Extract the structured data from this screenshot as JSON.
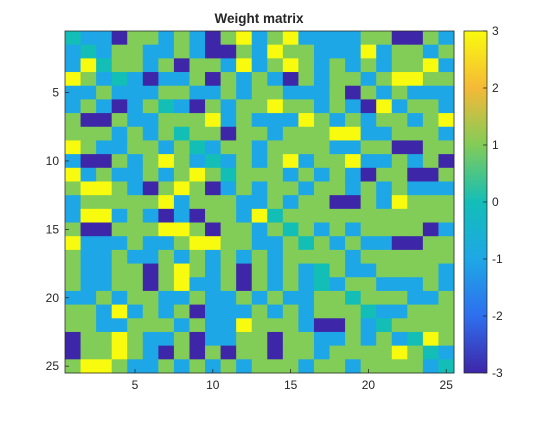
{
  "chart_data": {
    "type": "heatmap",
    "title": "Weight matrix",
    "xlabel": "",
    "ylabel": "",
    "x_range": [
      1,
      25
    ],
    "y_range": [
      1,
      25
    ],
    "x_ticks": [
      5,
      10,
      15,
      20,
      25
    ],
    "y_ticks": [
      5,
      10,
      15,
      20,
      25
    ],
    "colorbar": {
      "ticks": [
        3,
        2,
        1,
        0,
        -1,
        -2,
        -3
      ],
      "range": [
        -3,
        3
      ],
      "colormap": "parula",
      "stops": [
        [
          -3,
          "#3e26a8"
        ],
        [
          -2,
          "#2e6fee"
        ],
        [
          -1,
          "#1ea7e6"
        ],
        [
          0,
          "#13beb7"
        ],
        [
          1,
          "#82cc58"
        ],
        [
          2,
          "#f5b937"
        ],
        [
          3,
          "#f9fb0e"
        ]
      ]
    },
    "matrix": [
      [
        0,
        -1,
        -1,
        -3,
        1,
        1,
        -1,
        1,
        -1,
        -3,
        1,
        3,
        -1,
        1,
        3,
        -1,
        -1,
        -1,
        -1,
        1,
        1,
        -3,
        -3,
        1,
        -1
      ],
      [
        -1,
        0,
        -1,
        1,
        1,
        -1,
        -1,
        1,
        -1,
        -3,
        -3,
        1,
        -1,
        3,
        1,
        1,
        -1,
        -1,
        -1,
        3,
        -1,
        1,
        1,
        -1,
        1
      ],
      [
        -1,
        3,
        0,
        1,
        1,
        -1,
        1,
        -3,
        1,
        1,
        -1,
        3,
        -1,
        1,
        3,
        1,
        -1,
        1,
        -1,
        1,
        -1,
        1,
        1,
        3,
        -1
      ],
      [
        3,
        1,
        -1,
        0,
        -1,
        -3,
        -1,
        -1,
        1,
        -3,
        1,
        -1,
        1,
        -1,
        -3,
        1,
        -1,
        1,
        1,
        -1,
        1,
        3,
        3,
        1,
        1
      ],
      [
        -1,
        -1,
        1,
        -1,
        -1,
        -1,
        1,
        1,
        -1,
        -1,
        1,
        -1,
        1,
        1,
        -1,
        -1,
        -1,
        1,
        -3,
        1,
        -1,
        1,
        -1,
        -1,
        -1
      ],
      [
        -1,
        1,
        -1,
        -3,
        -1,
        1,
        0,
        -1,
        -3,
        1,
        -1,
        1,
        1,
        3,
        1,
        1,
        -1,
        1,
        -1,
        -3,
        3,
        -1,
        1,
        1,
        -1
      ],
      [
        1,
        -3,
        -3,
        1,
        -1,
        -1,
        1,
        1,
        1,
        3,
        -1,
        1,
        -1,
        -1,
        -1,
        3,
        1,
        -1,
        1,
        -1,
        1,
        1,
        -1,
        1,
        3
      ],
      [
        1,
        1,
        1,
        -1,
        1,
        -1,
        1,
        0,
        1,
        1,
        -3,
        1,
        1,
        -1,
        1,
        1,
        1,
        3,
        3,
        -1,
        -1,
        1,
        1,
        1,
        -1
      ],
      [
        3,
        1,
        -1,
        -1,
        1,
        1,
        -1,
        1,
        0,
        -1,
        1,
        1,
        -1,
        1,
        1,
        1,
        1,
        -1,
        -1,
        1,
        1,
        -3,
        -3,
        1,
        1
      ],
      [
        -1,
        -3,
        -3,
        1,
        -1,
        1,
        3,
        1,
        -1,
        0,
        -1,
        1,
        -1,
        1,
        3,
        -1,
        1,
        1,
        3,
        -1,
        -1,
        1,
        -1,
        1,
        -3
      ],
      [
        3,
        -1,
        1,
        -1,
        -1,
        1,
        -1,
        1,
        3,
        1,
        0,
        1,
        1,
        1,
        -1,
        1,
        -1,
        1,
        -1,
        -3,
        1,
        1,
        -3,
        -3,
        1
      ],
      [
        1,
        3,
        3,
        1,
        -1,
        -3,
        1,
        3,
        1,
        -3,
        -1,
        1,
        -1,
        1,
        1,
        -1,
        1,
        1,
        -1,
        1,
        -1,
        1,
        -1,
        -1,
        -1
      ],
      [
        -1,
        1,
        1,
        1,
        1,
        1,
        3,
        -1,
        1,
        1,
        1,
        -1,
        -1,
        1,
        -1,
        1,
        1,
        -3,
        -3,
        1,
        -1,
        3,
        1,
        1,
        1
      ],
      [
        -1,
        3,
        3,
        -1,
        1,
        -1,
        -3,
        -1,
        -3,
        1,
        1,
        -1,
        3,
        0,
        1,
        1,
        1,
        1,
        1,
        1,
        1,
        1,
        1,
        1,
        1
      ],
      [
        1,
        -3,
        -3,
        1,
        1,
        1,
        3,
        3,
        1,
        -3,
        1,
        1,
        -1,
        1,
        0,
        1,
        -1,
        1,
        -1,
        1,
        1,
        1,
        1,
        -3,
        -1
      ],
      [
        3,
        -1,
        -1,
        -1,
        1,
        -1,
        -1,
        1,
        3,
        3,
        1,
        1,
        -1,
        -1,
        1,
        0,
        1,
        -1,
        1,
        -1,
        -1,
        -3,
        -3,
        1,
        1
      ],
      [
        1,
        -1,
        -1,
        1,
        -1,
        -1,
        1,
        -1,
        1,
        -1,
        1,
        -1,
        1,
        -1,
        1,
        1,
        1,
        1,
        -1,
        1,
        1,
        1,
        1,
        1,
        1
      ],
      [
        1,
        -1,
        -1,
        1,
        1,
        -3,
        1,
        3,
        1,
        -1,
        1,
        -3,
        1,
        -1,
        1,
        -1,
        0,
        1,
        -1,
        -1,
        1,
        1,
        1,
        1,
        -1
      ],
      [
        1,
        -1,
        -1,
        1,
        1,
        -3,
        1,
        3,
        -1,
        -1,
        1,
        -3,
        1,
        -1,
        1,
        -1,
        0,
        -1,
        1,
        1,
        -1,
        -1,
        -1,
        1,
        -1
      ],
      [
        -1,
        -1,
        1,
        -1,
        1,
        1,
        -1,
        -1,
        1,
        -1,
        -1,
        1,
        -1,
        1,
        -1,
        -1,
        1,
        1,
        0,
        1,
        1,
        1,
        -1,
        -1,
        1
      ],
      [
        1,
        1,
        -1,
        3,
        -1,
        1,
        -1,
        1,
        -3,
        -1,
        -1,
        -1,
        1,
        -1,
        1,
        -1,
        1,
        1,
        1,
        0,
        -1,
        -1,
        1,
        1,
        1
      ],
      [
        1,
        1,
        -1,
        -1,
        1,
        1,
        1,
        -1,
        1,
        -1,
        -1,
        3,
        1,
        1,
        1,
        -1,
        -3,
        -3,
        1,
        -1,
        0,
        1,
        1,
        1,
        1
      ],
      [
        -3,
        1,
        1,
        3,
        1,
        -1,
        -1,
        1,
        -3,
        -1,
        -1,
        1,
        1,
        -3,
        1,
        1,
        -1,
        -1,
        1,
        -1,
        1,
        -1,
        0,
        3,
        1
      ],
      [
        -3,
        1,
        1,
        3,
        1,
        -1,
        -3,
        1,
        -3,
        1,
        -3,
        1,
        1,
        -3,
        1,
        1,
        -1,
        1,
        1,
        1,
        1,
        3,
        1,
        0,
        -1
      ],
      [
        1,
        3,
        3,
        1,
        -1,
        -1,
        1,
        -1,
        1,
        -1,
        1,
        -1,
        1,
        1,
        1,
        -1,
        1,
        1,
        -1,
        1,
        1,
        1,
        1,
        -1,
        0
      ]
    ]
  }
}
